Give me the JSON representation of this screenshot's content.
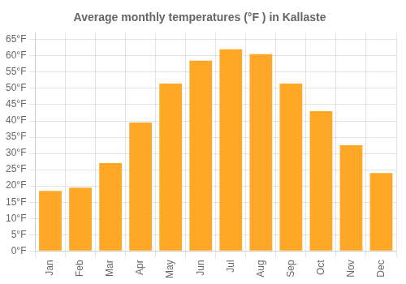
{
  "chart_data": {
    "type": "bar",
    "title": "Average monthly temperatures (°F ) in Kallaste",
    "categories": [
      "Jan",
      "Feb",
      "Mar",
      "Apr",
      "May",
      "Jun",
      "Jul",
      "Aug",
      "Sep",
      "Oct",
      "Nov",
      "Dec"
    ],
    "values": [
      18.5,
      19.5,
      27,
      39.5,
      51.5,
      58.5,
      62,
      60.5,
      51.5,
      43,
      32.5,
      24
    ],
    "color": "#FFA726",
    "ylim": [
      0,
      67
    ],
    "yticks": [
      {
        "value": 0,
        "label": "0°F"
      },
      {
        "value": 5,
        "label": "5°F"
      },
      {
        "value": 10,
        "label": "10°F"
      },
      {
        "value": 15,
        "label": "15°F"
      },
      {
        "value": 20,
        "label": "20°F"
      },
      {
        "value": 25,
        "label": "25°F"
      },
      {
        "value": 30,
        "label": "30°F"
      },
      {
        "value": 35,
        "label": "35°F"
      },
      {
        "value": 40,
        "label": "40°F"
      },
      {
        "value": 45,
        "label": "45°F"
      },
      {
        "value": 50,
        "label": "50°F"
      },
      {
        "value": 55,
        "label": "55°F"
      },
      {
        "value": 60,
        "label": "60°F"
      },
      {
        "value": 65,
        "label": "65°F"
      }
    ],
    "grid": true
  }
}
